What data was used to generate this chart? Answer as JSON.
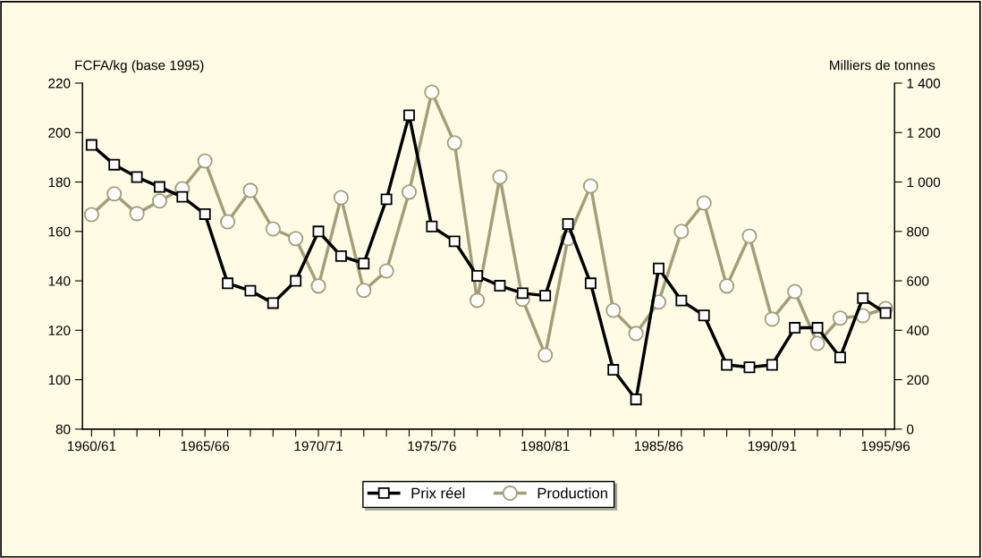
{
  "chart_data": {
    "type": "line",
    "ylabel": "FCFA/kg (base 1995)",
    "y2label": "Milliers de tonnes",
    "categories": [
      "1960/61",
      null,
      null,
      null,
      null,
      "1965/66",
      null,
      null,
      null,
      null,
      "1970/71",
      null,
      null,
      null,
      null,
      "1975/76",
      null,
      null,
      null,
      null,
      "1980/81",
      null,
      null,
      null,
      null,
      "1985/86",
      null,
      null,
      null,
      null,
      "1990/91",
      null,
      null,
      null,
      null,
      "1995/96"
    ],
    "ylim": [
      80,
      220
    ],
    "yticks": [
      80,
      100,
      120,
      140,
      160,
      180,
      200,
      220
    ],
    "y2lim": [
      0,
      1400
    ],
    "y2ticks": [
      0,
      200,
      400,
      600,
      800,
      {
        "value": 1000,
        "label": "1 000"
      },
      {
        "value": 1200,
        "label": "1 200"
      },
      {
        "value": 1400,
        "label": "1 400"
      }
    ],
    "grid": false,
    "legend": "bottom",
    "line_style": "solid",
    "series": [
      {
        "name": "Production",
        "color": "#a39e78",
        "axis": "y2",
        "marker": "circle",
        "values": [
          868,
          952,
          872,
          923,
          973,
          1085,
          839,
          966,
          810,
          771,
          579,
          937,
          561,
          640,
          959,
          1364,
          1158,
          521,
          1020,
          525,
          300,
          771,
          984,
          481,
          387,
          514,
          800,
          915,
          579,
          781,
          445,
          557,
          347,
          449,
          459,
          488
        ]
      },
      {
        "name": "Prix réel",
        "color": "#000000",
        "axis": "y",
        "marker": "square",
        "values": [
          195,
          187,
          182,
          178,
          174,
          167,
          139,
          136,
          131,
          140,
          160,
          150,
          147,
          173,
          207,
          162,
          156,
          142,
          138,
          135,
          134,
          163,
          139,
          104,
          92,
          145,
          132,
          126,
          106,
          105,
          106,
          121,
          121,
          109,
          133,
          127
        ]
      }
    ]
  }
}
